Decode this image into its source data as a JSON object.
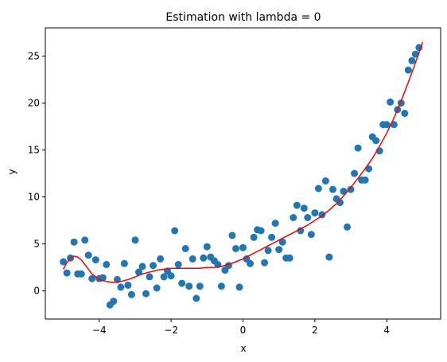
{
  "chart_data": {
    "type": "scatter",
    "title": "Estimation with lambda = 0",
    "xlabel": "x",
    "ylabel": "y",
    "xlim": [
      -5.5,
      5.5
    ],
    "ylim": [
      -3,
      28
    ],
    "xticks": [
      -4,
      -2,
      0,
      2,
      4
    ],
    "yticks": [
      0,
      5,
      10,
      15,
      20,
      25
    ],
    "grid": false,
    "series": [
      {
        "kind": "scatter",
        "color": "#1f77b4",
        "points": [
          [
            -5.0,
            3.1
          ],
          [
            -4.9,
            1.9
          ],
          [
            -4.8,
            3.5
          ],
          [
            -4.7,
            5.2
          ],
          [
            -4.6,
            1.8
          ],
          [
            -4.5,
            1.8
          ],
          [
            -4.4,
            5.4
          ],
          [
            -4.3,
            3.8
          ],
          [
            -4.2,
            1.3
          ],
          [
            -4.1,
            3.3
          ],
          [
            -4.0,
            1.3
          ],
          [
            -3.9,
            1.4
          ],
          [
            -3.8,
            2.8
          ],
          [
            -3.7,
            -1.5
          ],
          [
            -3.6,
            -1.1
          ],
          [
            -3.5,
            1.2
          ],
          [
            -3.4,
            0.4
          ],
          [
            -3.3,
            2.9
          ],
          [
            -3.2,
            0.6
          ],
          [
            -3.1,
            -0.4
          ],
          [
            -3.0,
            5.4
          ],
          [
            -2.9,
            2.0
          ],
          [
            -2.8,
            2.6
          ],
          [
            -2.7,
            -0.3
          ],
          [
            -2.6,
            1.5
          ],
          [
            -2.5,
            2.7
          ],
          [
            -2.4,
            0.3
          ],
          [
            -2.3,
            3.4
          ],
          [
            -2.2,
            1.5
          ],
          [
            -2.1,
            2.1
          ],
          [
            -2.0,
            1.6
          ],
          [
            -1.9,
            6.4
          ],
          [
            -1.8,
            2.8
          ],
          [
            -1.7,
            0.8
          ],
          [
            -1.6,
            4.5
          ],
          [
            -1.5,
            0.5
          ],
          [
            -1.4,
            3.4
          ],
          [
            -1.3,
            -0.8
          ],
          [
            -1.2,
            0.5
          ],
          [
            -1.1,
            3.5
          ],
          [
            -1.0,
            4.7
          ],
          [
            -0.9,
            3.6
          ],
          [
            -0.8,
            3.2
          ],
          [
            -0.7,
            2.8
          ],
          [
            -0.6,
            0.5
          ],
          [
            -0.5,
            2.2
          ],
          [
            -0.4,
            2.7
          ],
          [
            -0.3,
            5.9
          ],
          [
            -0.2,
            4.5
          ],
          [
            -0.1,
            0.4
          ],
          [
            0.0,
            4.6
          ],
          [
            0.1,
            3.4
          ],
          [
            0.2,
            2.9
          ],
          [
            0.3,
            5.7
          ],
          [
            0.4,
            6.5
          ],
          [
            0.5,
            6.4
          ],
          [
            0.6,
            3.0
          ],
          [
            0.7,
            4.3
          ],
          [
            0.8,
            5.7
          ],
          [
            0.9,
            7.2
          ],
          [
            1.0,
            4.4
          ],
          [
            1.1,
            5.2
          ],
          [
            1.2,
            3.5
          ],
          [
            1.3,
            3.5
          ],
          [
            1.4,
            7.8
          ],
          [
            1.5,
            9.1
          ],
          [
            1.6,
            6.4
          ],
          [
            1.7,
            8.8
          ],
          [
            1.8,
            7.8
          ],
          [
            1.9,
            6.0
          ],
          [
            2.0,
            8.3
          ],
          [
            2.1,
            10.9
          ],
          [
            2.2,
            8.1
          ],
          [
            2.3,
            11.7
          ],
          [
            2.4,
            3.6
          ],
          [
            2.5,
            10.8
          ],
          [
            2.6,
            9.8
          ],
          [
            2.7,
            9.4
          ],
          [
            2.8,
            10.6
          ],
          [
            2.9,
            6.8
          ],
          [
            3.0,
            10.8
          ],
          [
            3.1,
            12.5
          ],
          [
            3.2,
            15.2
          ],
          [
            3.3,
            11.8
          ],
          [
            3.4,
            11.8
          ],
          [
            3.5,
            13.0
          ],
          [
            3.6,
            16.4
          ],
          [
            3.7,
            16.0
          ],
          [
            3.8,
            14.9
          ],
          [
            3.9,
            17.7
          ],
          [
            4.0,
            17.7
          ],
          [
            4.1,
            20.1
          ],
          [
            4.2,
            17.7
          ],
          [
            4.3,
            19.3
          ],
          [
            4.4,
            20.0
          ],
          [
            4.5,
            18.9
          ],
          [
            4.6,
            23.5
          ],
          [
            4.7,
            24.5
          ],
          [
            4.8,
            25.2
          ],
          [
            4.9,
            25.9
          ]
        ]
      },
      {
        "kind": "line",
        "color": "#ff0000",
        "points": [
          [
            -5.0,
            2.3
          ],
          [
            -4.9,
            3.0
          ],
          [
            -4.8,
            3.5
          ],
          [
            -4.7,
            3.7
          ],
          [
            -4.6,
            3.6
          ],
          [
            -4.5,
            3.3
          ],
          [
            -4.4,
            2.8
          ],
          [
            -4.3,
            2.3
          ],
          [
            -4.2,
            1.8
          ],
          [
            -4.1,
            1.5
          ],
          [
            -4.0,
            1.2
          ],
          [
            -3.8,
            1.0
          ],
          [
            -3.6,
            0.9
          ],
          [
            -3.4,
            1.0
          ],
          [
            -3.2,
            1.2
          ],
          [
            -3.0,
            1.5
          ],
          [
            -2.8,
            1.8
          ],
          [
            -2.6,
            2.0
          ],
          [
            -2.4,
            2.2
          ],
          [
            -2.2,
            2.3
          ],
          [
            -2.0,
            2.4
          ],
          [
            -1.8,
            2.4
          ],
          [
            -1.6,
            2.4
          ],
          [
            -1.4,
            2.4
          ],
          [
            -1.2,
            2.4
          ],
          [
            -1.0,
            2.5
          ],
          [
            -0.8,
            2.5
          ],
          [
            -0.6,
            2.6
          ],
          [
            -0.4,
            2.8
          ],
          [
            -0.2,
            3.1
          ],
          [
            0.0,
            3.4
          ],
          [
            0.2,
            3.8
          ],
          [
            0.4,
            4.2
          ],
          [
            0.6,
            4.6
          ],
          [
            0.8,
            5.0
          ],
          [
            1.0,
            5.4
          ],
          [
            1.2,
            5.8
          ],
          [
            1.4,
            6.2
          ],
          [
            1.6,
            6.6
          ],
          [
            1.8,
            7.0
          ],
          [
            2.0,
            7.5
          ],
          [
            2.2,
            8.0
          ],
          [
            2.4,
            8.6
          ],
          [
            2.6,
            9.3
          ],
          [
            2.8,
            10.1
          ],
          [
            3.0,
            11.0
          ],
          [
            3.2,
            12.0
          ],
          [
            3.4,
            13.0
          ],
          [
            3.6,
            14.1
          ],
          [
            3.8,
            15.4
          ],
          [
            4.0,
            16.8
          ],
          [
            4.2,
            18.4
          ],
          [
            4.4,
            20.2
          ],
          [
            4.6,
            22.2
          ],
          [
            4.8,
            24.3
          ],
          [
            4.9,
            25.4
          ],
          [
            5.0,
            26.5
          ]
        ]
      }
    ]
  }
}
